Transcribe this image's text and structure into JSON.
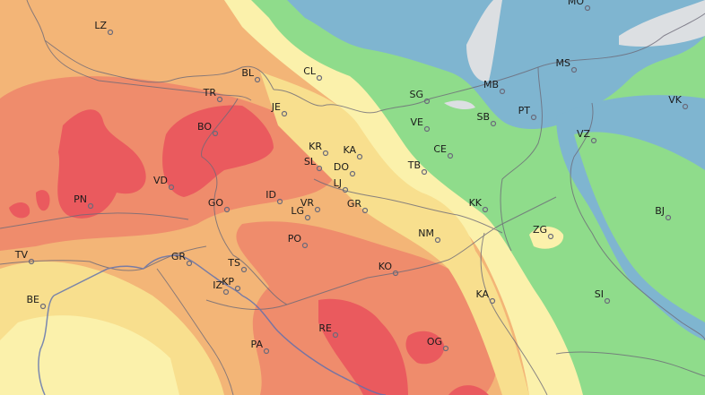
{
  "map": {
    "colors": {
      "hot": "#ea5a5e",
      "warm": "#ef8c6c",
      "mild": "#f3b577",
      "cool_yellow": "#f8df8e",
      "pale": "#fbf1ab",
      "green": "#8fdc8b",
      "green_dark": "#72cf86",
      "blue": "#7fb5d0",
      "grey": "#dcdfe2",
      "border": "#6d6a78"
    },
    "cities": [
      {
        "code": "LZ"
      },
      {
        "code": "BL"
      },
      {
        "code": "CL"
      },
      {
        "code": "TR"
      },
      {
        "code": "JE"
      },
      {
        "code": "BO"
      },
      {
        "code": "KR"
      },
      {
        "code": "KA"
      },
      {
        "code": "SL"
      },
      {
        "code": "DO"
      },
      {
        "code": "LJ"
      },
      {
        "code": "PN"
      },
      {
        "code": "VD"
      },
      {
        "code": "ID"
      },
      {
        "code": "GO"
      },
      {
        "code": "VR"
      },
      {
        "code": "LG"
      },
      {
        "code": "GR"
      },
      {
        "code": "PO"
      },
      {
        "code": "TV"
      },
      {
        "code": "GR"
      },
      {
        "code": "TS"
      },
      {
        "code": "KP"
      },
      {
        "code": "IZ"
      },
      {
        "code": "BE"
      },
      {
        "code": "PA"
      },
      {
        "code": "RE"
      },
      {
        "code": "KO"
      },
      {
        "code": "OG"
      },
      {
        "code": "NM"
      },
      {
        "code": "KK"
      },
      {
        "code": "TB"
      },
      {
        "code": "CE"
      },
      {
        "code": "VE"
      },
      {
        "code": "SG"
      },
      {
        "code": "MB"
      },
      {
        "code": "SB"
      },
      {
        "code": "PT"
      },
      {
        "code": "MS"
      },
      {
        "code": "MO"
      },
      {
        "code": "VK"
      },
      {
        "code": "VZ"
      },
      {
        "code": "ZG"
      },
      {
        "code": "BJ"
      },
      {
        "code": "SI"
      },
      {
        "code": "KA"
      }
    ]
  }
}
